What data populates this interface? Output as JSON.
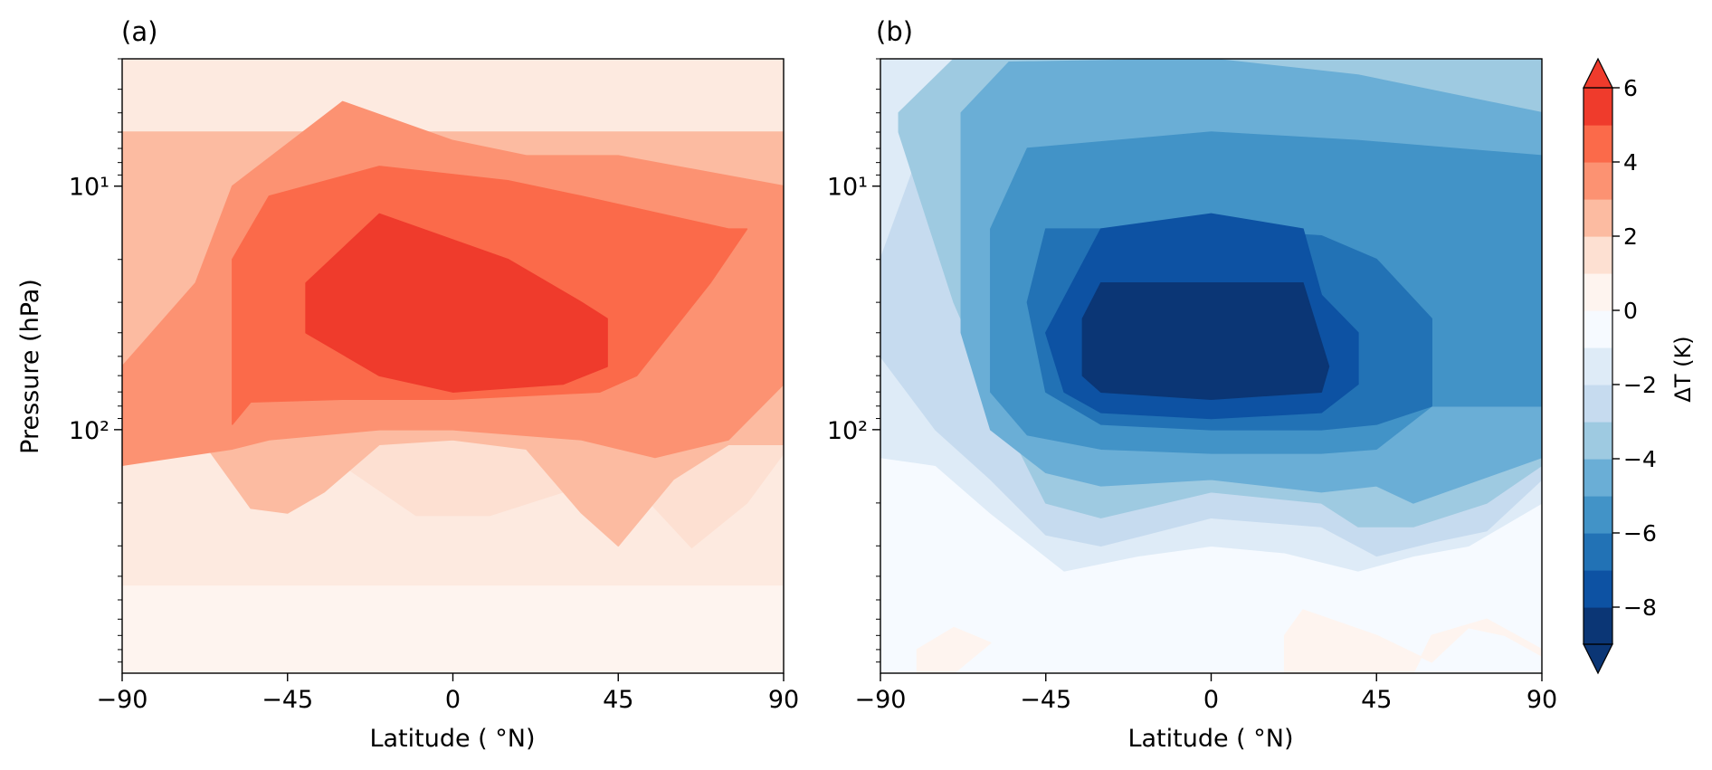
{
  "chart_data": [
    {
      "panel_label": "(a)",
      "type": "heatmap",
      "subtype": "filled-contour",
      "xlabel": "Latitude ( °N)",
      "ylabel": "Pressure (hPa)",
      "xlim": [
        -90,
        90
      ],
      "x_ticks": [
        -90,
        -45,
        0,
        45,
        90
      ],
      "x_tick_labels": [
        "−90",
        "−45",
        "0",
        "45",
        "90"
      ],
      "y_scale": "log",
      "y_inverted": true,
      "ylim": [
        1000,
        3
      ],
      "y_major_labels": [
        "10¹",
        "10²"
      ],
      "regions": [
        {
          "level": [
            0,
            1
          ],
          "x": [
            -90,
            90,
            90,
            -90
          ],
          "y": [
            1000,
            1000,
            440,
            440
          ]
        },
        {
          "level": [
            1,
            2
          ],
          "x": [
            -90,
            -80,
            -60,
            -45,
            -30,
            -10,
            10,
            30,
            45,
            55,
            65,
            80,
            90,
            90,
            -90
          ],
          "y": [
            80,
            80,
            85,
            115,
            140,
            225,
            225,
            180,
            145,
            210,
            305,
            200,
            125,
            10,
            10
          ]
        },
        {
          "level": [
            2,
            3
          ],
          "x": [
            -90,
            -75,
            -55,
            -45,
            -35,
            -20,
            0,
            20,
            35,
            45,
            60,
            75,
            90,
            90,
            -90
          ],
          "y": [
            80,
            80,
            210,
            220,
            180,
            115,
            110,
            120,
            220,
            300,
            160,
            115,
            115,
            6,
            6
          ]
        },
        {
          "level": [
            3,
            4
          ],
          "x": [
            -90,
            -60,
            -50,
            -20,
            0,
            35,
            55,
            75,
            90,
            90,
            45,
            20,
            0,
            -30,
            -60,
            -70,
            -90
          ],
          "y": [
            140,
            120,
            110,
            100,
            100,
            110,
            130,
            110,
            65,
            10,
            7.5,
            7.5,
            6.5,
            4.5,
            10,
            25,
            55
          ]
        },
        {
          "level": [
            4,
            5
          ],
          "x": [
            -60,
            -55,
            -30,
            0,
            40,
            50,
            70,
            80,
            75,
            35,
            15,
            -20,
            -50,
            -60
          ],
          "y": [
            95,
            77,
            75,
            75,
            70,
            60,
            25,
            15,
            15,
            11,
            9.5,
            8.3,
            11,
            20
          ]
        },
        {
          "level": [
            5,
            6
          ],
          "x": [
            -40,
            -20,
            0,
            30,
            42,
            42,
            35,
            15,
            -20,
            -40
          ],
          "y": [
            40,
            60,
            70,
            65,
            55,
            35,
            30,
            20,
            13,
            25
          ]
        }
      ]
    },
    {
      "panel_label": "(b)",
      "type": "heatmap",
      "subtype": "filled-contour",
      "xlabel": "Latitude ( °N)",
      "xlim": [
        -90,
        90
      ],
      "x_ticks": [
        -90,
        -45,
        0,
        45,
        90
      ],
      "x_tick_labels": [
        "−90",
        "−45",
        "0",
        "45",
        "90"
      ],
      "y_scale": "log",
      "y_inverted": true,
      "ylim": [
        1000,
        3
      ],
      "y_major_labels": [
        "10¹",
        "10²"
      ],
      "regions": [
        {
          "level": [
            0,
            1
          ],
          "x": [
            -80,
            -70,
            -60,
            -70,
            -80
          ],
          "y": [
            1000,
            1000,
            750,
            650,
            800
          ]
        },
        {
          "level": [
            0,
            1
          ],
          "x": [
            20,
            55,
            60,
            75,
            90,
            90,
            80,
            70,
            60,
            45,
            25,
            20
          ],
          "y": [
            1000,
            1000,
            700,
            600,
            800,
            850,
            700,
            650,
            900,
            700,
            550,
            700
          ]
        },
        {
          "level": [
            -2,
            -1
          ],
          "x": [
            -90,
            -75,
            -60,
            -40,
            -20,
            0,
            20,
            40,
            55,
            70,
            90,
            90,
            -90
          ],
          "y": [
            130,
            140,
            220,
            380,
            330,
            300,
            320,
            380,
            330,
            300,
            200,
            3,
            3
          ]
        },
        {
          "level": [
            -3,
            -2
          ],
          "x": [
            -90,
            -75,
            -60,
            -45,
            -30,
            0,
            30,
            45,
            60,
            75,
            90,
            90,
            55,
            45,
            -70,
            -90
          ],
          "y": [
            50,
            100,
            160,
            270,
            300,
            230,
            250,
            330,
            290,
            260,
            160,
            3,
            3,
            3.6,
            3,
            20
          ]
        },
        {
          "level": [
            -4,
            -3
          ],
          "x": [
            -85,
            -70,
            -55,
            -45,
            -30,
            0,
            30,
            40,
            55,
            75,
            90,
            90,
            20,
            -60,
            -70,
            -85
          ],
          "y": [
            6,
            30,
            100,
            200,
            230,
            180,
            200,
            250,
            250,
            200,
            140,
            3,
            3,
            3,
            3,
            5
          ]
        },
        {
          "level": [
            -5,
            -4
          ],
          "x": [
            -68,
            -68,
            -60,
            -45,
            -30,
            0,
            30,
            45,
            55,
            90,
            90,
            40,
            0,
            -55,
            -68
          ],
          "y": [
            5,
            40,
            100,
            150,
            170,
            160,
            180,
            170,
            200,
            130,
            5,
            3.5,
            3,
            3.1,
            5
          ]
        },
        {
          "level": [
            -6,
            -5
          ],
          "x": [
            -60,
            -60,
            -50,
            -30,
            0,
            30,
            45,
            60,
            90,
            90,
            40,
            0,
            -50,
            -60
          ],
          "y": [
            15,
            70,
            105,
            120,
            125,
            125,
            120,
            80,
            80,
            7.5,
            6.5,
            6,
            7,
            15
          ]
        },
        {
          "level": [
            -7,
            -6
          ],
          "x": [
            -50,
            -45,
            -30,
            0,
            30,
            45,
            60,
            60,
            45,
            30,
            0,
            -45,
            -50
          ],
          "y": [
            30,
            70,
            95,
            100,
            100,
            95,
            80,
            35,
            20,
            16,
            15,
            15,
            30
          ]
        },
        {
          "level": [
            -8,
            -7
          ],
          "x": [
            -45,
            -40,
            -30,
            0,
            30,
            40,
            40,
            30,
            25,
            0,
            -30,
            -45
          ],
          "y": [
            40,
            70,
            85,
            90,
            85,
            65,
            40,
            28,
            15,
            13,
            15,
            40
          ]
        },
        {
          "level": [
            -9,
            -8
          ],
          "x": [
            -35,
            -35,
            -30,
            0,
            30,
            32,
            25,
            0,
            -30,
            -35
          ],
          "y": [
            35,
            60,
            70,
            75,
            70,
            55,
            25,
            25,
            25,
            35
          ]
        }
      ]
    }
  ],
  "colorbar": {
    "label": "ΔT (K)",
    "levels": [
      -9,
      -8,
      -7,
      -6,
      -5,
      -4,
      -3,
      -2,
      -1,
      0,
      1,
      2,
      3,
      4,
      5,
      6
    ],
    "tick_values": [
      -8,
      -6,
      -4,
      -2,
      0,
      2,
      4,
      6
    ],
    "tick_labels": [
      "−8",
      "−6",
      "−4",
      "−2",
      "0",
      "2",
      "4",
      "6"
    ],
    "extend": "both",
    "colors": [
      "#0b3675",
      "#0d52a3",
      "#2272b5",
      "#4293c7",
      "#6aaed6",
      "#9ecae1",
      "#c6dbef",
      "#deebf7",
      "#f6faff",
      "#fef4ef",
      "#fde0d2",
      "#fcbba1",
      "#fc9272",
      "#fb6a4a",
      "#ef3b2c"
    ]
  }
}
